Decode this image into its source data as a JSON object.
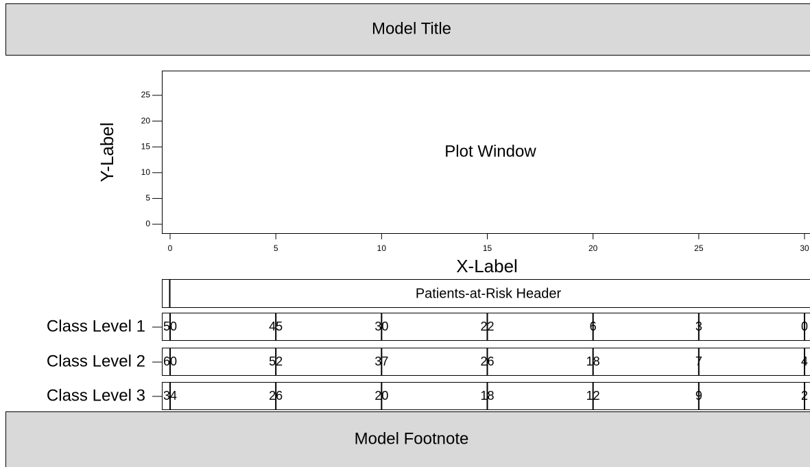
{
  "header": {
    "title": "Model Title"
  },
  "plot": {
    "label": "Plot Window",
    "y_label": "Y-Label",
    "x_label": "X-Label",
    "yticks": [
      0,
      5,
      10,
      15,
      20,
      25
    ],
    "xticks": [
      0,
      5,
      10,
      15,
      20,
      25,
      30
    ]
  },
  "risk_table": {
    "header": "Patients-at-Risk Header",
    "rows": [
      {
        "label": "Class Level 1",
        "counts": [
          50,
          45,
          30,
          22,
          6,
          3,
          0
        ]
      },
      {
        "label": "Class Level 2",
        "counts": [
          60,
          52,
          37,
          26,
          18,
          7,
          4
        ]
      },
      {
        "label": "Class Level 3",
        "counts": [
          34,
          26,
          20,
          18,
          12,
          9,
          2
        ]
      }
    ]
  },
  "footer": {
    "note": "Model Footnote"
  }
}
